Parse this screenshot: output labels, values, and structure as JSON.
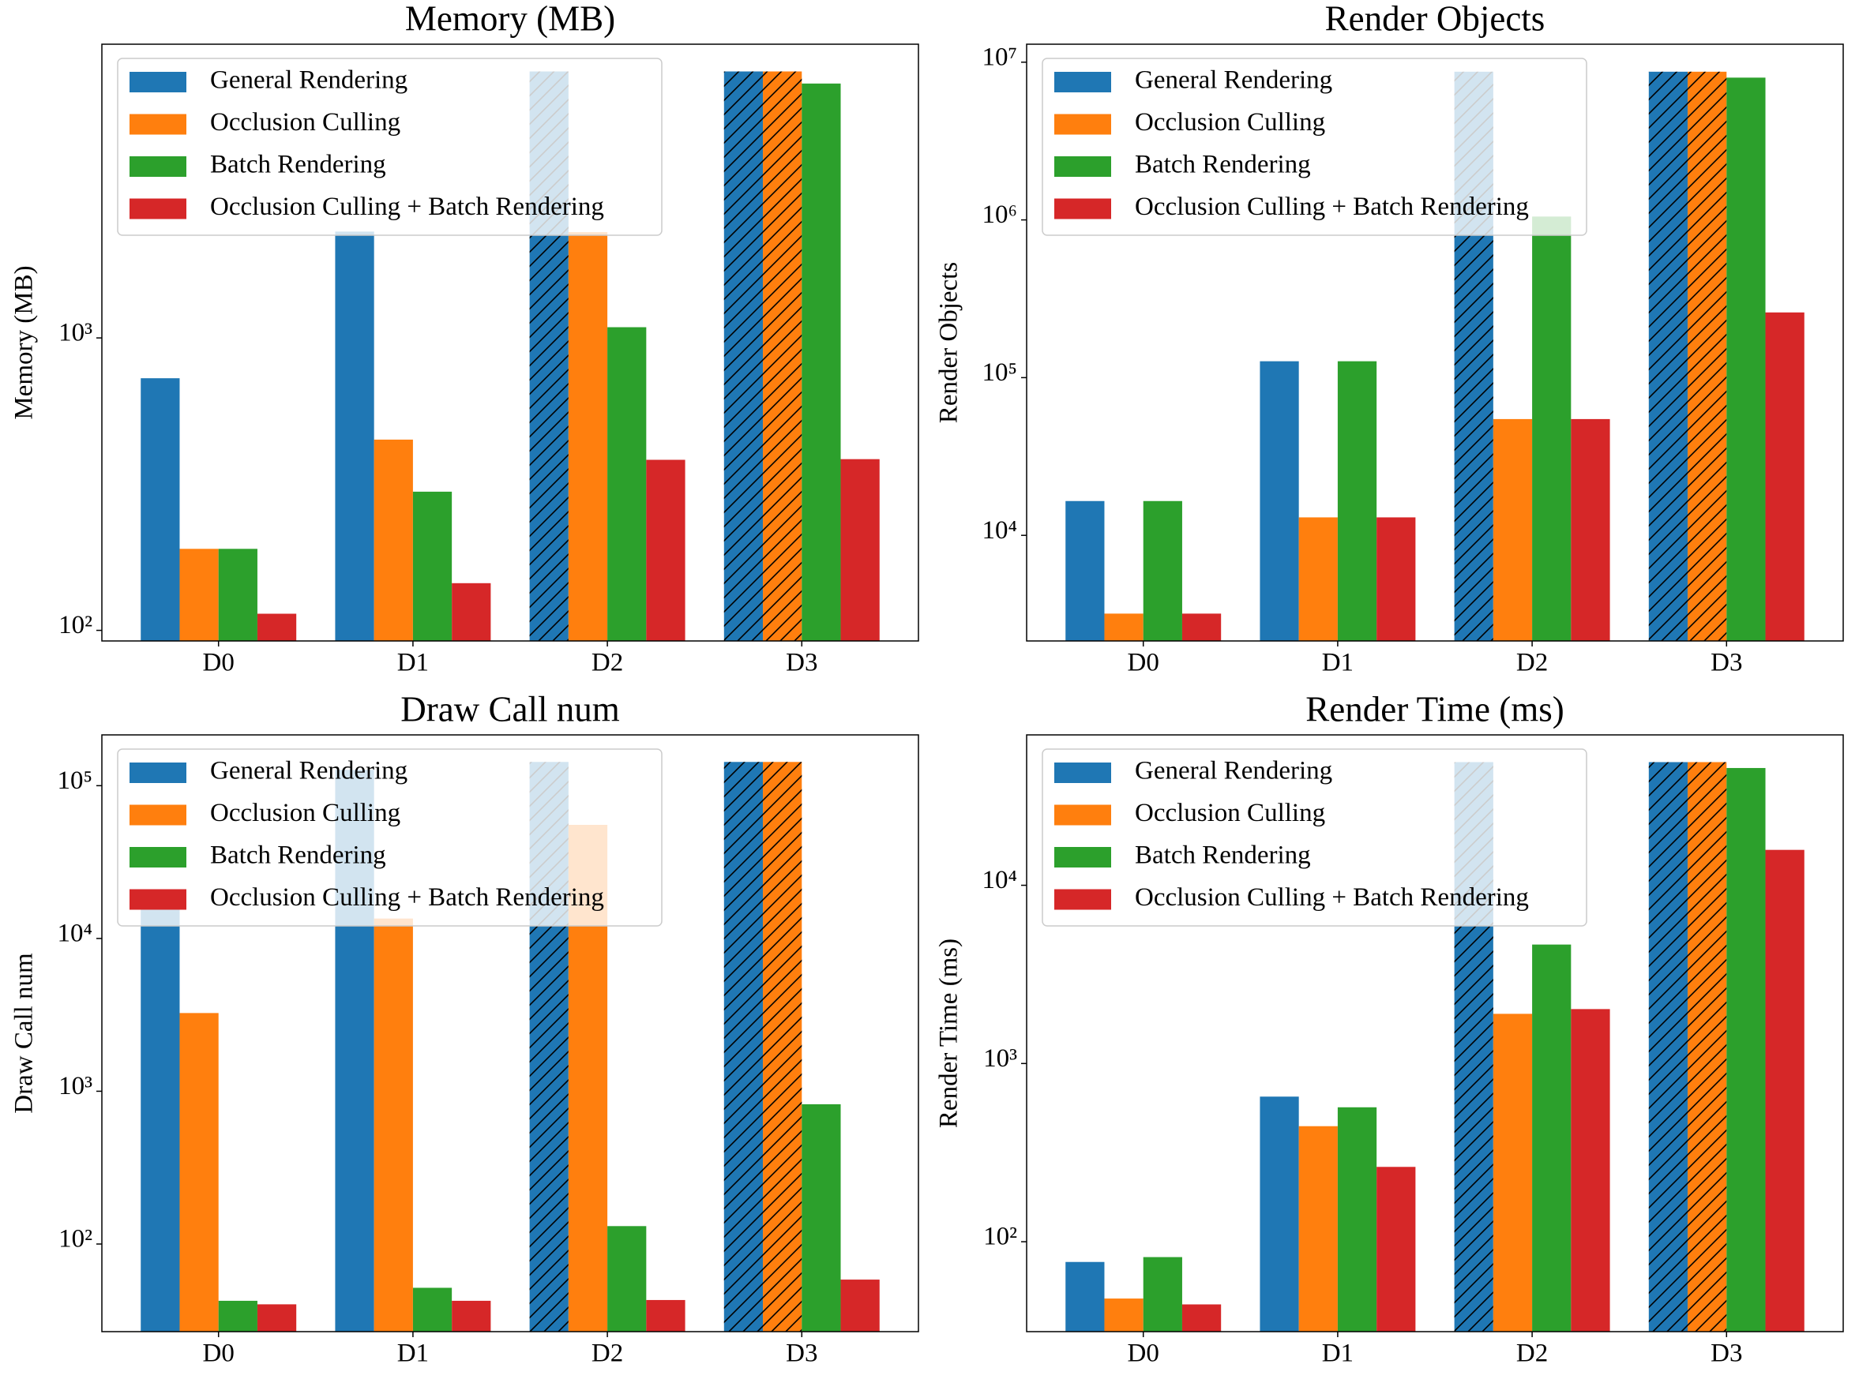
{
  "chart_data": [
    {
      "type": "bar",
      "title": "Memory (MB)",
      "ylabel": "Memory (MB)",
      "log_scale": true,
      "legend": "upper left",
      "categories": [
        "D0",
        "D1",
        "D2",
        "D3"
      ],
      "ylim": [
        92,
        10100
      ],
      "yticks": [
        {
          "value": 100,
          "label": "10²"
        },
        {
          "value": 1000,
          "label": "10³"
        }
      ],
      "series": [
        {
          "name": "General Rendering",
          "color": "#1f77b4",
          "values": [
            728,
            2310,
            8150,
            8150
          ],
          "hatch": [
            false,
            false,
            true,
            true
          ]
        },
        {
          "name": "Occlusion Culling",
          "color": "#ff7f0e",
          "values": [
            190,
            449,
            2300,
            8150
          ],
          "hatch": [
            false,
            false,
            false,
            true
          ]
        },
        {
          "name": "Batch Rendering",
          "color": "#2ca02c",
          "values": [
            190,
            298,
            1088,
            7410
          ],
          "hatch": [
            false,
            false,
            false,
            false
          ]
        },
        {
          "name": "Occlusion Culling + Batch Rendering",
          "color": "#d62728",
          "values": [
            114,
            145,
            383,
            385
          ],
          "hatch": [
            false,
            false,
            false,
            false
          ]
        }
      ]
    },
    {
      "type": "bar",
      "title": "Render Objects",
      "ylabel": "Render Objects",
      "log_scale": true,
      "legend": "upper left",
      "categories": [
        "D0",
        "D1",
        "D2",
        "D3"
      ],
      "ylim": [
        2140,
        13000000
      ],
      "yticks": [
        {
          "value": 10000,
          "label": "10⁴"
        },
        {
          "value": 100000,
          "label": "10⁵"
        },
        {
          "value": 1000000,
          "label": "10⁶"
        },
        {
          "value": 10000000,
          "label": "10⁷"
        }
      ],
      "series": [
        {
          "name": "General Rendering",
          "color": "#1f77b4",
          "values": [
            16500,
            127000,
            8700000,
            8700000
          ],
          "hatch": [
            false,
            false,
            true,
            true
          ]
        },
        {
          "name": "Occlusion Culling",
          "color": "#ff7f0e",
          "values": [
            3190,
            13000,
            54600,
            8700000
          ],
          "hatch": [
            false,
            false,
            false,
            true
          ]
        },
        {
          "name": "Batch Rendering",
          "color": "#2ca02c",
          "values": [
            16500,
            127000,
            1050000,
            7980000
          ],
          "hatch": [
            false,
            false,
            false,
            false
          ]
        },
        {
          "name": "Occlusion Culling + Batch Rendering",
          "color": "#d62728",
          "values": [
            3190,
            13000,
            54600,
            259000
          ],
          "hatch": [
            false,
            false,
            false,
            false
          ]
        }
      ]
    },
    {
      "type": "bar",
      "title": "Draw Call num",
      "ylabel": "Draw Call num",
      "log_scale": true,
      "legend": "upper left",
      "categories": [
        "D0",
        "D1",
        "D2",
        "D3"
      ],
      "ylim": [
        26.7,
        215000
      ],
      "yticks": [
        {
          "value": 100,
          "label": "10²"
        },
        {
          "value": 1000,
          "label": "10³"
        },
        {
          "value": 10000,
          "label": "10⁴"
        },
        {
          "value": 100000,
          "label": "10⁵"
        }
      ],
      "series": [
        {
          "name": "General Rendering",
          "color": "#1f77b4",
          "values": [
            16500,
            127000,
            143000,
            143000
          ],
          "hatch": [
            false,
            false,
            true,
            true
          ]
        },
        {
          "name": "Occlusion Culling",
          "color": "#ff7f0e",
          "values": [
            3250,
            13500,
            55400,
            143000
          ],
          "hatch": [
            false,
            false,
            false,
            true
          ]
        },
        {
          "name": "Batch Rendering",
          "color": "#2ca02c",
          "values": [
            42.5,
            51.7,
            131,
            822
          ],
          "hatch": [
            false,
            false,
            false,
            false
          ]
        },
        {
          "name": "Occlusion Culling + Batch Rendering",
          "color": "#d62728",
          "values": [
            40.3,
            42.5,
            43,
            58.5
          ],
          "hatch": [
            false,
            false,
            false,
            false
          ]
        }
      ]
    },
    {
      "type": "bar",
      "title": "Render Time (ms)",
      "ylabel": "Render Time (ms)",
      "log_scale": true,
      "legend": "upper left",
      "categories": [
        "D0",
        "D1",
        "D2",
        "D3"
      ],
      "ylim": [
        31.3,
        69800
      ],
      "yticks": [
        {
          "value": 100,
          "label": "10²"
        },
        {
          "value": 1000,
          "label": "10³"
        },
        {
          "value": 10000,
          "label": "10⁴"
        }
      ],
      "series": [
        {
          "name": "General Rendering",
          "color": "#1f77b4",
          "values": [
            77,
            652,
            49100,
            49100
          ],
          "hatch": [
            false,
            false,
            true,
            true
          ]
        },
        {
          "name": "Occlusion Culling",
          "color": "#ff7f0e",
          "values": [
            48,
            445,
            1900,
            49100
          ],
          "hatch": [
            false,
            false,
            false,
            true
          ]
        },
        {
          "name": "Batch Rendering",
          "color": "#2ca02c",
          "values": [
            82,
            568,
            4650,
            45500
          ],
          "hatch": [
            false,
            false,
            false,
            false
          ]
        },
        {
          "name": "Occlusion Culling + Batch Rendering",
          "color": "#d62728",
          "values": [
            44.5,
            263,
            2020,
            15800
          ],
          "hatch": [
            false,
            false,
            false,
            false
          ]
        }
      ]
    }
  ]
}
